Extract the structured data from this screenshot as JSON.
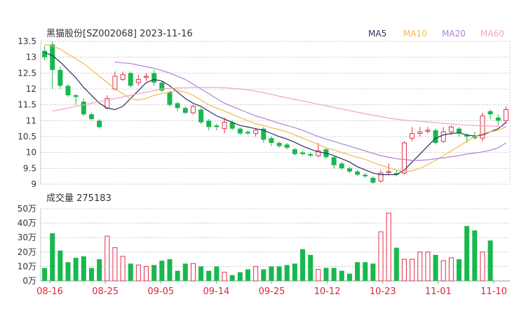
{
  "header": {
    "stock": "黑猫股份[SZ002068]",
    "date": "2023-11-16"
  },
  "legend": [
    {
      "label": "MA5",
      "color": "#2d2f5e"
    },
    {
      "label": "MA10",
      "color": "#f5b84c"
    },
    {
      "label": "MA20",
      "color": "#b57fd6"
    },
    {
      "label": "MA60",
      "color": "#f0a4c8"
    }
  ],
  "volume_title": "成交量 275183",
  "colors": {
    "up": "#e0304a",
    "down": "#18b84e",
    "grid": "#c8c8c8",
    "axis_text": "#333333",
    "date_text": "#d62a3a"
  },
  "chart_data": [
    {
      "type": "candlestick",
      "title": "黑猫股份[SZ002068] 2023-11-16",
      "ylim": [
        9,
        13.5
      ],
      "y_ticks": [
        "13.5",
        "13",
        "12.5",
        "12",
        "11.5",
        "11",
        "10.5",
        "10",
        "9.5",
        "9"
      ],
      "x_ticks": [
        "08-16",
        "08-25",
        "09-05",
        "09-14",
        "09-25",
        "10-12",
        "10-23",
        "11-01",
        "11-10"
      ],
      "grid": true,
      "legend_position": "top-right",
      "candles": [
        [
          13.2,
          13.0,
          13.35,
          12.9
        ],
        [
          13.4,
          12.6,
          13.5,
          12.0
        ],
        [
          12.6,
          12.1,
          12.7,
          12.0
        ],
        [
          12.1,
          11.8,
          12.15,
          11.75
        ],
        [
          11.8,
          11.75,
          11.85,
          11.5
        ],
        [
          11.6,
          11.2,
          11.7,
          11.15
        ],
        [
          11.2,
          11.05,
          11.25,
          11.0
        ],
        [
          11.0,
          10.8,
          11.05,
          10.75
        ],
        [
          11.4,
          11.7,
          11.8,
          11.35
        ],
        [
          12.0,
          12.4,
          12.55,
          11.95
        ],
        [
          12.3,
          12.45,
          12.55,
          12.25
        ],
        [
          12.5,
          12.1,
          12.55,
          12.05
        ],
        [
          12.2,
          12.3,
          12.45,
          12.1
        ],
        [
          12.4,
          12.4,
          12.5,
          12.25
        ],
        [
          12.5,
          12.2,
          12.6,
          12.1
        ],
        [
          12.2,
          11.95,
          12.25,
          11.9
        ],
        [
          11.9,
          11.5,
          11.95,
          11.45
        ],
        [
          11.55,
          11.4,
          11.6,
          11.3
        ],
        [
          11.4,
          11.25,
          11.45,
          11.2
        ],
        [
          11.25,
          11.45,
          11.5,
          11.2
        ],
        [
          11.35,
          10.95,
          11.4,
          10.9
        ],
        [
          11.0,
          10.8,
          11.05,
          10.7
        ],
        [
          10.85,
          10.8,
          10.9,
          10.7
        ],
        [
          10.75,
          10.95,
          11.1,
          10.6
        ],
        [
          10.95,
          10.75,
          11.0,
          10.7
        ],
        [
          10.75,
          10.6,
          10.8,
          10.55
        ],
        [
          10.65,
          10.6,
          10.7,
          10.55
        ],
        [
          10.6,
          10.7,
          10.75,
          10.5
        ],
        [
          10.75,
          10.4,
          10.8,
          10.3
        ],
        [
          10.45,
          10.3,
          10.5,
          10.2
        ],
        [
          10.3,
          10.2,
          10.35,
          10.15
        ],
        [
          10.25,
          10.15,
          10.3,
          10.1
        ],
        [
          10.1,
          9.95,
          10.15,
          9.9
        ],
        [
          10.0,
          9.95,
          10.05,
          9.9
        ],
        [
          9.95,
          9.9,
          10.0,
          9.85
        ],
        [
          9.9,
          10.05,
          10.3,
          9.85
        ],
        [
          10.1,
          9.85,
          10.15,
          9.8
        ],
        [
          9.85,
          9.6,
          9.9,
          9.5
        ],
        [
          9.65,
          9.5,
          9.7,
          9.45
        ],
        [
          9.5,
          9.4,
          9.55,
          9.35
        ],
        [
          9.4,
          9.3,
          9.45,
          9.25
        ],
        [
          9.3,
          9.25,
          9.35,
          9.2
        ],
        [
          9.2,
          9.05,
          9.25,
          9.0
        ],
        [
          9.1,
          9.35,
          9.45,
          9.05
        ],
        [
          9.4,
          9.4,
          9.65,
          9.3
        ],
        [
          9.35,
          9.3,
          9.45,
          9.25
        ],
        [
          9.35,
          10.3,
          10.35,
          9.3
        ],
        [
          10.45,
          10.6,
          10.8,
          10.35
        ],
        [
          10.6,
          10.65,
          10.8,
          10.5
        ],
        [
          10.7,
          10.7,
          10.8,
          10.6
        ],
        [
          10.7,
          10.3,
          10.75,
          10.25
        ],
        [
          10.35,
          10.65,
          10.8,
          10.3
        ],
        [
          10.65,
          10.8,
          10.85,
          10.55
        ],
        [
          10.75,
          10.6,
          10.8,
          10.5
        ],
        [
          10.55,
          10.5,
          10.6,
          10.3
        ],
        [
          10.5,
          10.45,
          10.65,
          10.4
        ],
        [
          10.45,
          11.15,
          11.25,
          10.35
        ],
        [
          11.3,
          11.2,
          11.35,
          11.05
        ],
        [
          11.1,
          11.0,
          11.2,
          10.85
        ],
        [
          11.0,
          11.35,
          11.45,
          10.9
        ]
      ],
      "series": [
        {
          "name": "MA5",
          "values": [
            13.15,
            13.05,
            12.85,
            12.6,
            12.35,
            12.05,
            11.8,
            11.55,
            11.4,
            11.35,
            11.45,
            11.7,
            11.95,
            12.2,
            12.3,
            12.25,
            12.1,
            11.9,
            11.7,
            11.55,
            11.45,
            11.3,
            11.15,
            11.05,
            10.95,
            10.85,
            10.8,
            10.75,
            10.7,
            10.6,
            10.5,
            10.42,
            10.32,
            10.2,
            10.1,
            10.02,
            9.98,
            9.9,
            9.8,
            9.7,
            9.55,
            9.45,
            9.35,
            9.3,
            9.3,
            9.3,
            9.45,
            9.7,
            9.95,
            10.2,
            10.45,
            10.55,
            10.6,
            10.62,
            10.55,
            10.52,
            10.55,
            10.65,
            10.75,
            10.95
          ]
        },
        {
          "name": "MA10",
          "values": [
            13.4,
            13.35,
            13.25,
            13.1,
            12.95,
            12.8,
            12.6,
            12.4,
            12.2,
            12.0,
            11.85,
            11.7,
            11.65,
            11.7,
            11.8,
            11.85,
            11.9,
            11.95,
            11.9,
            11.8,
            11.65,
            11.5,
            11.4,
            11.3,
            11.2,
            11.1,
            11.0,
            10.9,
            10.85,
            10.78,
            10.72,
            10.65,
            10.55,
            10.45,
            10.35,
            10.25,
            10.15,
            10.08,
            10.0,
            9.92,
            9.85,
            9.78,
            9.68,
            9.6,
            9.52,
            9.45,
            9.4,
            9.42,
            9.5,
            9.62,
            9.75,
            9.9,
            10.05,
            10.2,
            10.35,
            10.5,
            10.6,
            10.65,
            10.7,
            10.8
          ]
        },
        {
          "name": "MA20",
          "values": [
            null,
            null,
            null,
            null,
            null,
            null,
            null,
            null,
            null,
            12.85,
            12.82,
            12.8,
            12.75,
            12.7,
            12.65,
            12.58,
            12.5,
            12.4,
            12.3,
            12.15,
            12.0,
            11.85,
            11.7,
            11.55,
            11.45,
            11.35,
            11.25,
            11.15,
            11.08,
            11.0,
            10.92,
            10.85,
            10.78,
            10.7,
            10.6,
            10.5,
            10.42,
            10.35,
            10.27,
            10.2,
            10.12,
            10.05,
            9.97,
            9.9,
            9.85,
            9.8,
            9.78,
            9.75,
            9.75,
            9.77,
            9.8,
            9.83,
            9.87,
            9.9,
            9.95,
            9.98,
            10.02,
            10.07,
            10.15,
            10.3
          ]
        },
        {
          "name": "MA60",
          "values": [
            null,
            11.3,
            11.35,
            11.4,
            11.45,
            11.5,
            11.55,
            11.6,
            11.65,
            11.7,
            11.75,
            11.8,
            11.85,
            11.9,
            11.95,
            12.0,
            12.02,
            12.03,
            12.04,
            12.05,
            12.05,
            12.05,
            12.05,
            12.04,
            12.02,
            12.0,
            11.97,
            11.93,
            11.88,
            11.83,
            11.77,
            11.72,
            11.67,
            11.62,
            11.57,
            11.52,
            11.47,
            11.42,
            11.37,
            11.32,
            11.27,
            11.22,
            11.17,
            11.13,
            11.08,
            11.05,
            11.02,
            11.0,
            10.98,
            10.96,
            10.94,
            10.92,
            10.9,
            10.88,
            10.86,
            10.85,
            10.84,
            10.83,
            10.82,
            10.81
          ]
        }
      ]
    },
    {
      "type": "bar",
      "title": "成交量 275183",
      "ylim": [
        0,
        50
      ],
      "y_ticks": [
        "50万",
        "40万",
        "30万",
        "20万",
        "10万",
        "0万"
      ],
      "grid": true,
      "values": [
        9,
        33,
        21,
        13,
        16,
        17,
        9,
        15,
        31,
        23,
        17,
        12,
        11,
        10,
        11,
        14,
        15,
        7,
        12,
        12,
        10,
        7,
        10,
        6,
        4,
        6,
        8,
        10,
        8,
        10,
        10,
        11,
        12,
        22,
        18,
        8,
        9,
        9,
        7,
        5,
        13,
        13,
        12,
        34,
        47,
        23,
        15,
        15,
        20,
        20,
        18,
        14,
        16,
        15,
        38,
        35,
        20,
        28,
        null,
        null
      ]
    }
  ]
}
